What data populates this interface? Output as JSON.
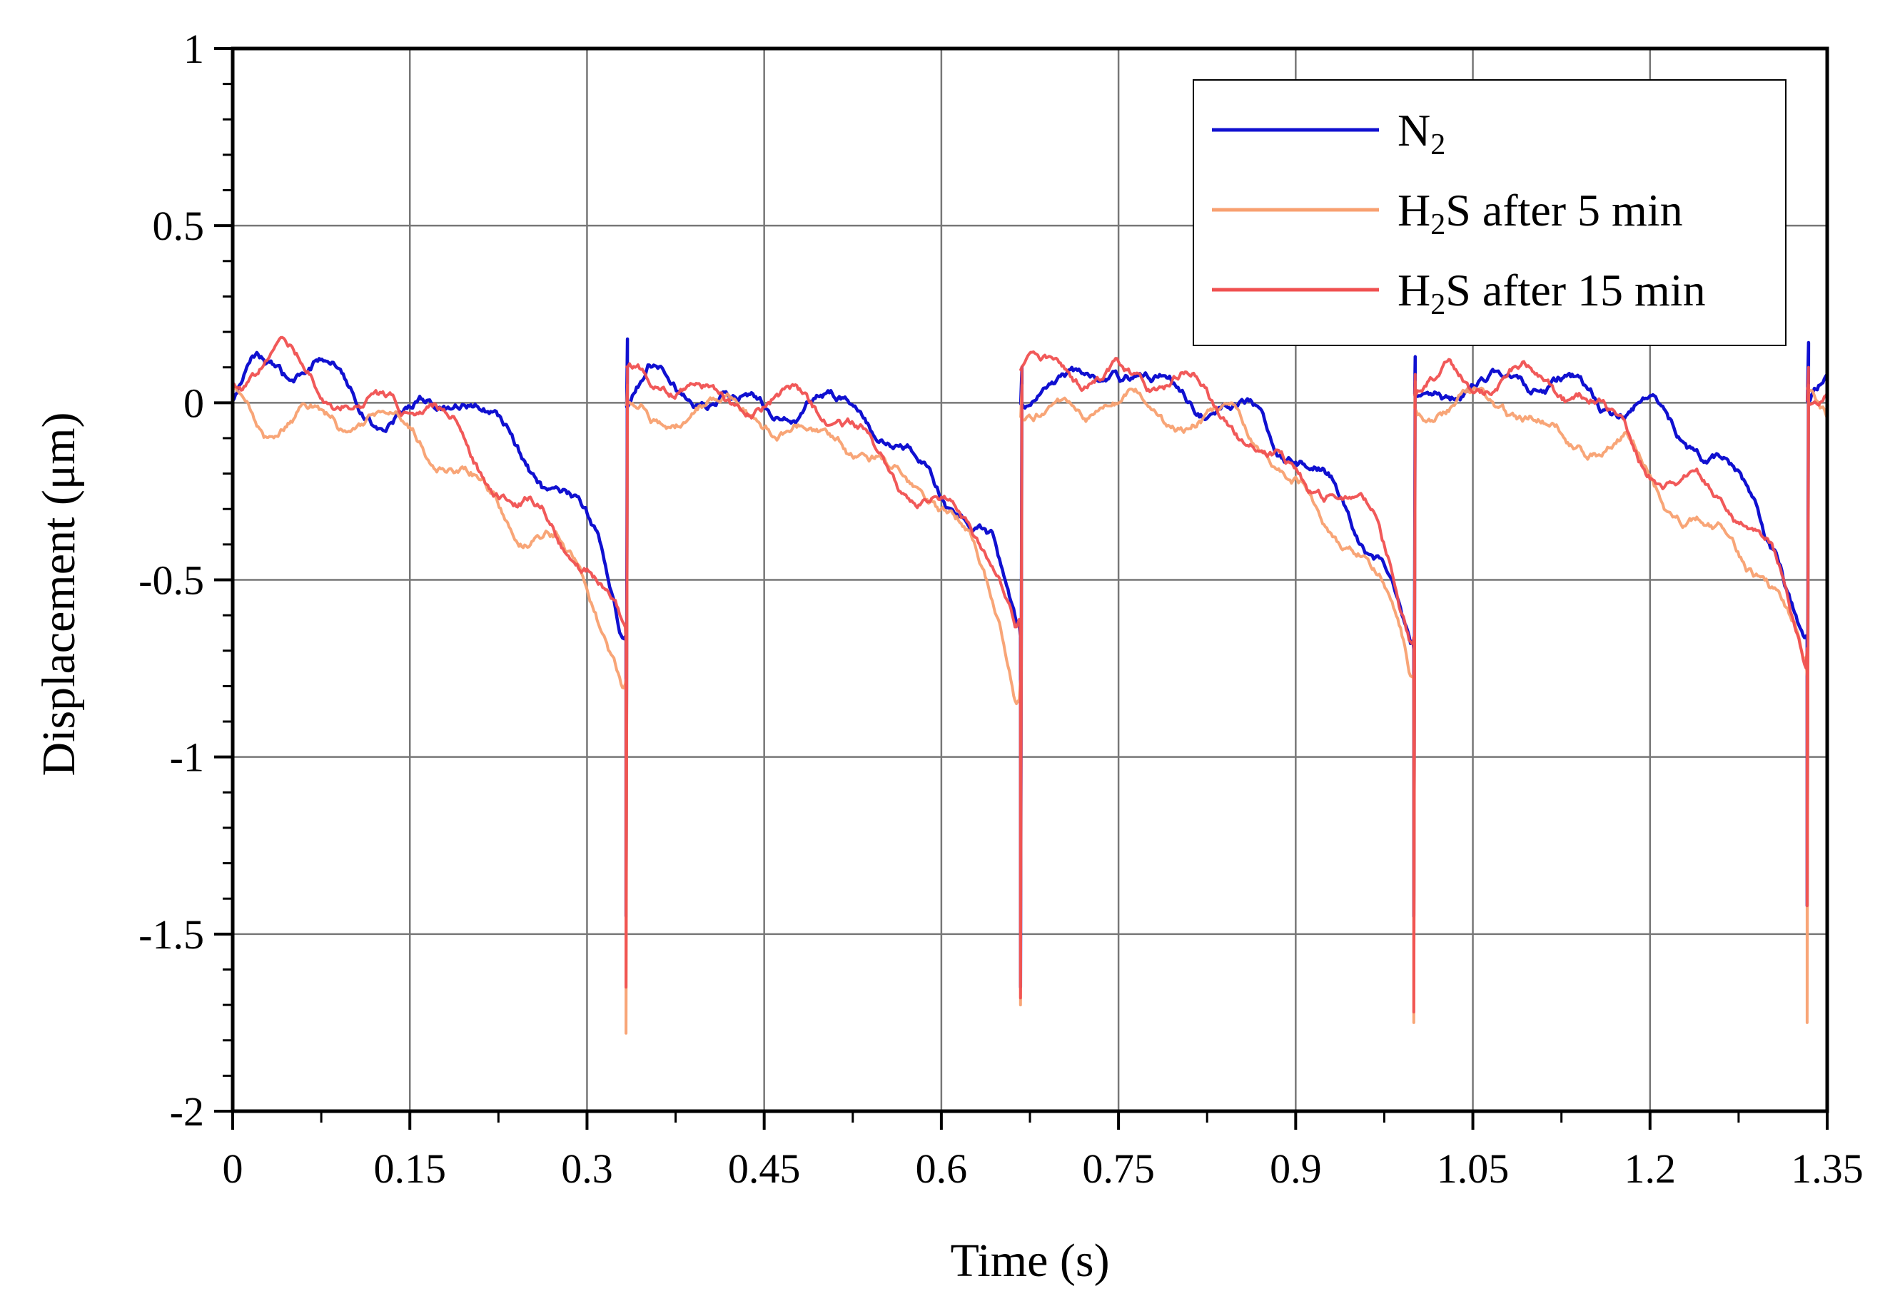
{
  "chart_data": {
    "type": "line",
    "xlabel": "Time (s)",
    "ylabel": "Displacement (μm)",
    "xlim": [
      0,
      1.35
    ],
    "ylim": [
      -2,
      1
    ],
    "grid": true,
    "legend_position": "top-right",
    "x_ticks": [
      "0",
      "0.15",
      "0.3",
      "0.45",
      "0.6",
      "0.75",
      "0.9",
      "1.05",
      "1.2",
      "1.35"
    ],
    "y_ticks": [
      "1",
      "0.5",
      "0",
      "-0.5",
      "-1",
      "-1.5",
      "-2"
    ],
    "cycle_drop_times": [
      0.333,
      0.667,
      1.0,
      1.333
    ],
    "series": [
      {
        "name": "N₂",
        "label_main": "N",
        "label_sub": "2",
        "label_rest": "",
        "color": "#1010d0",
        "profile": [
          [
            0.0,
            0.0
          ],
          [
            0.02,
            0.08
          ],
          [
            0.05,
            0.05
          ],
          [
            0.08,
            0.08
          ],
          [
            0.12,
            0.01
          ],
          [
            0.15,
            0.0
          ],
          [
            0.2,
            0.0
          ],
          [
            0.23,
            -0.1
          ],
          [
            0.26,
            -0.2
          ],
          [
            0.29,
            -0.35
          ],
          [
            0.31,
            -0.45
          ],
          [
            0.325,
            -0.62
          ],
          [
            0.33,
            -0.68
          ]
        ],
        "minima": [
          -1.45,
          -1.65,
          -1.45,
          -1.42
        ],
        "peaks": [
          0.18,
          0.1,
          0.13,
          0.17
        ]
      },
      {
        "name": "H₂S after 5 min",
        "label_main": "H",
        "label_sub": "2",
        "label_rest": "S after 5 min",
        "color": "#f8a070",
        "profile": [
          [
            0.0,
            0.0
          ],
          [
            0.03,
            -0.05
          ],
          [
            0.06,
            -0.02
          ],
          [
            0.1,
            -0.07
          ],
          [
            0.15,
            -0.1
          ],
          [
            0.18,
            -0.12
          ],
          [
            0.2,
            -0.2
          ],
          [
            0.23,
            -0.28
          ],
          [
            0.26,
            -0.33
          ],
          [
            0.29,
            -0.42
          ],
          [
            0.31,
            -0.55
          ],
          [
            0.325,
            -0.7
          ],
          [
            0.33,
            -0.78
          ]
        ],
        "minima": [
          -1.78,
          -1.7,
          -1.75,
          -1.75
        ],
        "peaks": [
          0.05,
          0.05,
          0.06,
          0.05
        ]
      },
      {
        "name": "H₂S after 15 min",
        "label_main": "H",
        "label_sub": "2",
        "label_rest": "S after 15 min",
        "color": "#f05050",
        "profile": [
          [
            0.0,
            0.05
          ],
          [
            0.03,
            0.1
          ],
          [
            0.06,
            0.06
          ],
          [
            0.1,
            0.04
          ],
          [
            0.15,
            0.0
          ],
          [
            0.18,
            -0.08
          ],
          [
            0.21,
            -0.18
          ],
          [
            0.24,
            -0.25
          ],
          [
            0.27,
            -0.3
          ],
          [
            0.3,
            -0.42
          ],
          [
            0.315,
            -0.52
          ],
          [
            0.325,
            -0.62
          ],
          [
            0.33,
            -0.68
          ]
        ],
        "minima": [
          -1.65,
          -1.68,
          -1.72,
          -1.42
        ],
        "peaks": [
          0.1,
          0.1,
          0.08,
          0.1
        ]
      }
    ]
  }
}
